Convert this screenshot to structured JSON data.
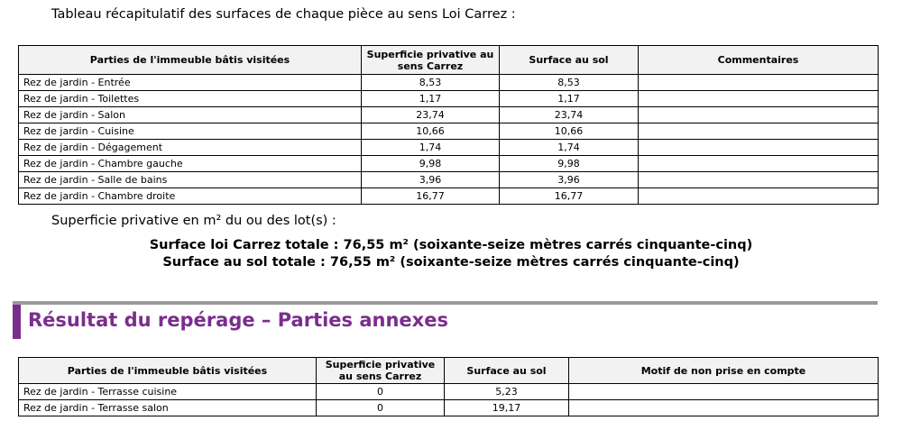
{
  "intro": "Tableau récapitulatif des surfaces de chaque pièce au sens Loi Carrez :",
  "table1": {
    "headers": [
      "Parties de l'immeuble bâtis visitées",
      "Superficie privative au sens Carrez",
      "Surface au sol",
      "Commentaires"
    ],
    "rows": [
      [
        "Rez de jardin - Entrée",
        "8,53",
        "8,53",
        ""
      ],
      [
        "Rez de jardin - Toilettes",
        "1,17",
        "1,17",
        ""
      ],
      [
        "Rez de jardin - Salon",
        "23,74",
        "23,74",
        ""
      ],
      [
        "Rez de jardin - Cuisine",
        "10,66",
        "10,66",
        ""
      ],
      [
        "Rez de jardin - Dégagement",
        "1,74",
        "1,74",
        ""
      ],
      [
        "Rez de jardin - Chambre gauche",
        "9,98",
        "9,98",
        ""
      ],
      [
        "Rez de jardin - Salle de bains",
        "3,96",
        "3,96",
        ""
      ],
      [
        "Rez de jardin - Chambre droite",
        "16,77",
        "16,77",
        ""
      ]
    ]
  },
  "summary": {
    "label": "Superficie privative en m² du ou des lot(s) :",
    "lines": [
      "Surface loi Carrez totale : 76,55 m² (soixante-seize mètres carrés cinquante-cinq)",
      "Surface au sol totale : 76,55 m² (soixante-seize mètres carrés cinquante-cinq)"
    ]
  },
  "section": {
    "title": "Résultat du repérage – Parties annexes"
  },
  "table2": {
    "headers": [
      "Parties de l'immeuble bâtis visitées",
      "Superficie privative au sens Carrez",
      "Surface au sol",
      "Motif de non prise en compte"
    ],
    "rows": [
      [
        "Rez de jardin - Terrasse cuisine",
        "0",
        "5,23",
        ""
      ],
      [
        "Rez de jardin - Terrasse salon",
        "0",
        "19,17",
        ""
      ]
    ]
  }
}
